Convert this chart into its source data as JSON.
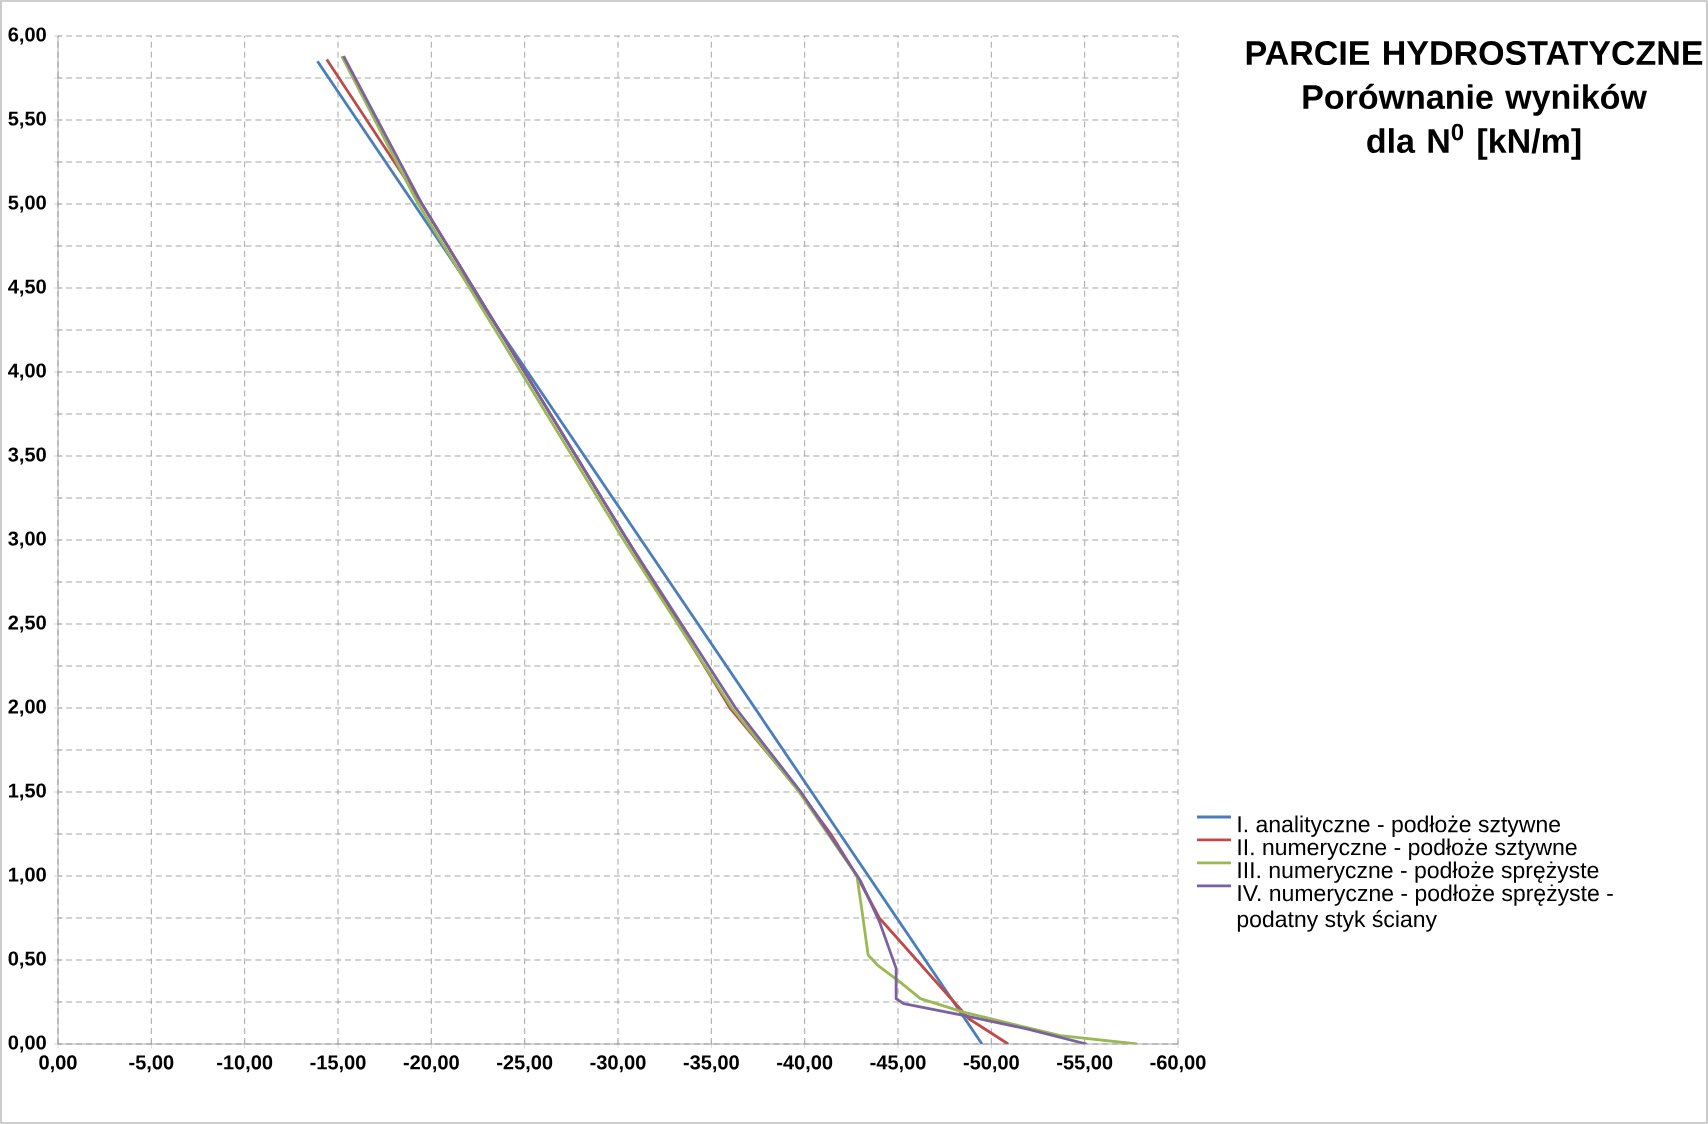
{
  "chart_data": {
    "type": "line",
    "title": "PARCIE HYDROSTATYCZNE",
    "subtitle": "Porównanie wyników dla N$^{0}$ [kN/m]",
    "xlim": [
      0,
      -60
    ],
    "xticks": [
      {
        "value": 0,
        "label": "0,00"
      },
      {
        "value": -5,
        "label": "-5,00"
      },
      {
        "value": -10,
        "label": "-10,00"
      },
      {
        "value": -15,
        "label": "-15,00"
      },
      {
        "value": -20,
        "label": "-20,00"
      },
      {
        "value": -25,
        "label": "-25,00"
      },
      {
        "value": -30,
        "label": "-30,00"
      },
      {
        "value": -35,
        "label": "-35,00"
      },
      {
        "value": -40,
        "label": "-40,00"
      },
      {
        "value": -45,
        "label": "-45,00"
      },
      {
        "value": -50,
        "label": "-50,00"
      },
      {
        "value": -55,
        "label": "-55,00"
      },
      {
        "value": -60,
        "label": "-60,00"
      }
    ],
    "ylim": [
      0,
      6
    ],
    "yticks": [
      {
        "value": 0,
        "label": "0,00"
      },
      {
        "value": 0.25,
        "label": null
      },
      {
        "value": 0.5,
        "label": "0,50"
      },
      {
        "value": 0.75,
        "label": null
      },
      {
        "value": 1,
        "label": "1,00"
      },
      {
        "value": 1.25,
        "label": null
      },
      {
        "value": 1.5,
        "label": "1,50"
      },
      {
        "value": 1.75,
        "label": null
      },
      {
        "value": 2,
        "label": "2,00"
      },
      {
        "value": 2.25,
        "label": null
      },
      {
        "value": 2.5,
        "label": "2,50"
      },
      {
        "value": 2.75,
        "label": null
      },
      {
        "value": 3,
        "label": "3,00"
      },
      {
        "value": 3.25,
        "label": null
      },
      {
        "value": 3.5,
        "label": "3,50"
      },
      {
        "value": 3.75,
        "label": null
      },
      {
        "value": 4,
        "label": "4,00"
      },
      {
        "value": 4.25,
        "label": null
      },
      {
        "value": 4.5,
        "label": "4,50"
      },
      {
        "value": 4.75,
        "label": null
      },
      {
        "value": 5,
        "label": "5,00"
      },
      {
        "value": 5.25,
        "label": null
      },
      {
        "value": 5.5,
        "label": "5,50"
      },
      {
        "value": 5.75,
        "label": null
      },
      {
        "value": 6,
        "label": "6,00"
      }
    ],
    "grid": true,
    "legend": "right",
    "line_style": "solid",
    "marker": "none",
    "series": [
      {
        "name": "I. analityczne - podłoże sztywne",
        "color": "#4a7ebb",
        "x": [
          -49.5,
          -13.9
        ],
        "values": [
          0,
          5.85
        ]
      },
      {
        "name": "II. numeryczne - podłoże sztywne",
        "color": "#be4b48",
        "x": [
          -50.9,
          -48.8,
          -48.0,
          -46.0,
          -44.0,
          -42.8,
          -41.4,
          -39.75,
          -36.0,
          -30.5,
          -25.0,
          -19.5,
          -14.4
        ],
        "values": [
          0,
          0.15,
          0.25,
          0.5,
          0.75,
          1.0,
          1.25,
          1.5,
          2.0,
          3.0,
          4.0,
          5.0,
          5.86
        ]
      },
      {
        "name": "III. numeryczne - podłoże sprężyste",
        "color": "#98b954",
        "x": [
          -57.8,
          -53.7,
          -48.5,
          -46.2,
          -45.1,
          -43.9,
          -43.4,
          -43.1,
          -42.8,
          -39.7,
          -36.1,
          -30.3,
          -24.8,
          -19.3,
          -15.2
        ],
        "values": [
          0,
          0.05,
          0.19,
          0.27,
          0.37,
          0.47,
          0.53,
          0.77,
          1.0,
          1.5,
          2.0,
          3.0,
          4.0,
          5.0,
          5.88
        ]
      },
      {
        "name": "IV. numeryczne - podłoże sprężyste - podatny styk ściany",
        "color": "#7d60a0",
        "x": [
          -55.1,
          -51.9,
          -48.5,
          -45.3,
          -44.9,
          -44.9,
          -44.0,
          -43.0,
          -39.8,
          -36.3,
          -30.5,
          -25.0,
          -19.5,
          -15.3
        ],
        "values": [
          0,
          0.09,
          0.17,
          0.24,
          0.27,
          0.45,
          0.73,
          0.97,
          1.5,
          2.0,
          3.0,
          4.0,
          5.0,
          5.88
        ]
      }
    ]
  }
}
